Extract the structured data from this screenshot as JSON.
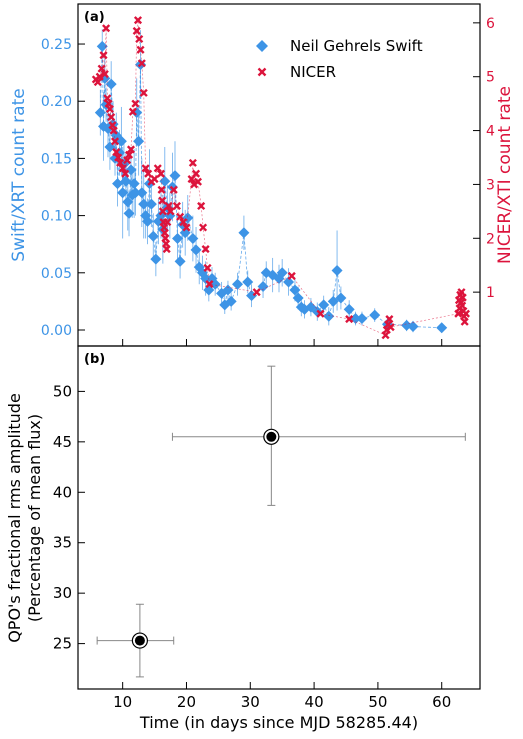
{
  "colors": {
    "swift": "#3d94e6",
    "nicer": "#dc143c",
    "qpo": "#000000",
    "err": "#888888"
  },
  "chart_data": [
    {
      "panel_label": "(a)",
      "type": "scatter",
      "xlim": [
        3,
        66
      ],
      "y_left": {
        "label": "Swift/XRT count rate",
        "lim": [
          -0.014,
          0.285
        ],
        "ticks": [
          0.0,
          0.05,
          0.1,
          0.15,
          0.2,
          0.25
        ],
        "tick_labels": [
          "0.00",
          "0.05",
          "0.10",
          "0.15",
          "0.20",
          "0.25"
        ]
      },
      "y_right": {
        "label": "NICER/XTI count rate",
        "lim": [
          0,
          6.35
        ],
        "ticks": [
          1,
          2,
          3,
          4,
          5,
          6
        ],
        "tick_labels": [
          "1",
          "2",
          "3",
          "4",
          "5",
          "6"
        ]
      },
      "legend": {
        "position": "top-right",
        "entries": [
          "Neil Gehrels Swift",
          "NICER"
        ]
      },
      "series": [
        {
          "name": "Neil Gehrels Swift",
          "marker": "diamond",
          "axis": "left",
          "points": [
            [
              6.5,
              0.19,
              0.02
            ],
            [
              6.8,
              0.248,
              0.015
            ],
            [
              7.0,
              0.178,
              0.03
            ],
            [
              7.2,
              0.22,
              0.02
            ],
            [
              7.4,
              0.197,
              0.015
            ],
            [
              7.7,
              0.176,
              0.025
            ],
            [
              8.0,
              0.16,
              0.02
            ],
            [
              8.2,
              0.215,
              0.02
            ],
            [
              8.5,
              0.18,
              0.02
            ],
            [
              8.8,
              0.15,
              0.015
            ],
            [
              9.0,
              0.17,
              0.02
            ],
            [
              9.2,
              0.128,
              0.02
            ],
            [
              9.5,
              0.155,
              0.02
            ],
            [
              9.8,
              0.165,
              0.03
            ],
            [
              10.0,
              0.12,
              0.04
            ],
            [
              10.2,
              0.145,
              0.02
            ],
            [
              10.5,
              0.13,
              0.025
            ],
            [
              10.8,
              0.112,
              0.025
            ],
            [
              11.0,
              0.102,
              0.02
            ],
            [
              11.3,
              0.14,
              0.02
            ],
            [
              11.5,
              0.118,
              0.02
            ],
            [
              11.8,
              0.128,
              0.03
            ],
            [
              12.0,
              0.12,
              0.02
            ],
            [
              12.2,
              0.19,
              0.03
            ],
            [
              12.5,
              0.165,
              0.03
            ],
            [
              12.8,
              0.232,
              0.03
            ],
            [
              13.0,
              0.12,
              0.03
            ],
            [
              13.3,
              0.11,
              0.03
            ],
            [
              13.6,
              0.1,
              0.02
            ],
            [
              13.9,
              0.095,
              0.02
            ],
            [
              14.2,
              0.128,
              0.03
            ],
            [
              14.5,
              0.11,
              0.02
            ],
            [
              14.8,
              0.082,
              0.02
            ],
            [
              15.2,
              0.062,
              0.015
            ],
            [
              15.6,
              0.095,
              0.02
            ],
            [
              16.0,
              0.1,
              0.02
            ],
            [
              16.3,
              0.088,
              0.03
            ],
            [
              16.6,
              0.13,
              0.03
            ],
            [
              17.0,
              0.107,
              0.02
            ],
            [
              17.4,
              0.1,
              0.02
            ],
            [
              17.8,
              0.125,
              0.03
            ],
            [
              18.2,
              0.135,
              0.03
            ],
            [
              18.6,
              0.08,
              0.02
            ],
            [
              19.0,
              0.06,
              0.015
            ],
            [
              19.4,
              0.092,
              0.02
            ],
            [
              19.8,
              0.085,
              0.02
            ],
            [
              20.2,
              0.098,
              0.02
            ],
            [
              21.0,
              0.08,
              0.02
            ],
            [
              21.5,
              0.07,
              0.02
            ],
            [
              22.0,
              0.055,
              0.015
            ],
            [
              22.5,
              0.05,
              0.015
            ],
            [
              23.0,
              0.045,
              0.015
            ],
            [
              23.5,
              0.035,
              0.01
            ],
            [
              24.0,
              0.045,
              0.01
            ],
            [
              24.5,
              0.04,
              0.01
            ],
            [
              25.5,
              0.032,
              0.01
            ],
            [
              26.0,
              0.022,
              0.008
            ],
            [
              26.5,
              0.035,
              0.008
            ],
            [
              27.0,
              0.025,
              0.008
            ],
            [
              28.0,
              0.04,
              0.01
            ],
            [
              29.0,
              0.085,
              0.015
            ],
            [
              29.6,
              0.042,
              0.01
            ],
            [
              30.2,
              0.03,
              0.01
            ],
            [
              32.0,
              0.038,
              0.01
            ],
            [
              32.5,
              0.05,
              0.01
            ],
            [
              33.5,
              0.048,
              0.015
            ],
            [
              34.5,
              0.045,
              0.012
            ],
            [
              35.0,
              0.05,
              0.012
            ],
            [
              36.0,
              0.042,
              0.012
            ],
            [
              37.0,
              0.035,
              0.01
            ],
            [
              37.5,
              0.028,
              0.01
            ],
            [
              38.0,
              0.02,
              0.008
            ],
            [
              38.5,
              0.018,
              0.008
            ],
            [
              39.5,
              0.02,
              0.008
            ],
            [
              40.5,
              0.016,
              0.008
            ],
            [
              41.5,
              0.022,
              0.008
            ],
            [
              42.3,
              0.012,
              0.008
            ],
            [
              43.0,
              0.025,
              0.01
            ],
            [
              43.6,
              0.052,
              0.035
            ],
            [
              44.2,
              0.028,
              0.01
            ],
            [
              45.5,
              0.018,
              0.008
            ],
            [
              46.5,
              0.01,
              0.006
            ],
            [
              47.5,
              0.01,
              0.006
            ],
            [
              49.5,
              0.013,
              0.006
            ],
            [
              51.5,
              0.005,
              0.005
            ],
            [
              54.5,
              0.004,
              0.005
            ],
            [
              55.5,
              0.003,
              0.005
            ],
            [
              60.0,
              0.002,
              0.004
            ]
          ]
        },
        {
          "name": "NICER",
          "marker": "x",
          "axis": "right",
          "points": [
            [
              5.8,
              4.95
            ],
            [
              6.1,
              4.9
            ],
            [
              6.4,
              5.0
            ],
            [
              6.7,
              5.15
            ],
            [
              7.0,
              5.4
            ],
            [
              7.2,
              5.05
            ],
            [
              7.4,
              5.9
            ],
            [
              7.6,
              4.6
            ],
            [
              7.8,
              4.5
            ],
            [
              8.0,
              4.4
            ],
            [
              8.2,
              4.25
            ],
            [
              8.4,
              4.1
            ],
            [
              8.6,
              4.0
            ],
            [
              8.8,
              3.8
            ],
            [
              9.0,
              3.6
            ],
            [
              9.3,
              3.5
            ],
            [
              9.6,
              3.4
            ],
            [
              10.0,
              3.3
            ],
            [
              10.4,
              3.2
            ],
            [
              10.7,
              3.45
            ],
            [
              11.0,
              3.55
            ],
            [
              11.3,
              3.65
            ],
            [
              11.6,
              4.35
            ],
            [
              12.0,
              4.5
            ],
            [
              12.2,
              5.85
            ],
            [
              12.4,
              6.05
            ],
            [
              12.6,
              5.7
            ],
            [
              12.8,
              5.5
            ],
            [
              13.0,
              5.25
            ],
            [
              13.3,
              4.7
            ],
            [
              13.6,
              3.3
            ],
            [
              14.0,
              3.2
            ],
            [
              14.5,
              3.05
            ],
            [
              15.0,
              3.1
            ],
            [
              15.5,
              3.3
            ],
            [
              16.0,
              3.2
            ],
            [
              16.1,
              2.9
            ],
            [
              16.2,
              2.7
            ],
            [
              16.3,
              2.5
            ],
            [
              16.4,
              2.3
            ],
            [
              16.5,
              2.2
            ],
            [
              16.6,
              2.1
            ],
            [
              16.7,
              2.0
            ],
            [
              16.8,
              1.9
            ],
            [
              16.9,
              1.8
            ],
            [
              17.0,
              2.3
            ],
            [
              17.2,
              2.6
            ],
            [
              17.5,
              2.5
            ],
            [
              18.0,
              2.9
            ],
            [
              18.5,
              2.6
            ],
            [
              19.0,
              2.4
            ],
            [
              19.5,
              2.3
            ],
            [
              20.0,
              2.2
            ],
            [
              20.8,
              3.1
            ],
            [
              21.0,
              3.4
            ],
            [
              21.2,
              3.0
            ],
            [
              21.5,
              3.2
            ],
            [
              21.8,
              3.05
            ],
            [
              22.3,
              2.6
            ],
            [
              22.6,
              2.2
            ],
            [
              23.0,
              1.8
            ],
            [
              23.3,
              1.45
            ],
            [
              23.6,
              1.15
            ],
            [
              31.0,
              1.0
            ],
            [
              36.5,
              1.3
            ],
            [
              41.0,
              0.6
            ],
            [
              45.5,
              0.5
            ],
            [
              51.2,
              0.2
            ],
            [
              51.4,
              0.3
            ],
            [
              51.6,
              0.4
            ],
            [
              51.8,
              0.5
            ],
            [
              52.0,
              0.35
            ],
            [
              62.6,
              0.6
            ],
            [
              62.7,
              0.85
            ],
            [
              62.8,
              0.7
            ],
            [
              62.9,
              0.95
            ],
            [
              63.0,
              0.8
            ],
            [
              63.1,
              1.0
            ],
            [
              63.2,
              0.75
            ],
            [
              63.3,
              0.9
            ],
            [
              63.4,
              0.65
            ],
            [
              63.5,
              0.55
            ],
            [
              63.6,
              0.45
            ],
            [
              63.8,
              0.6
            ]
          ]
        }
      ]
    },
    {
      "panel_label": "(b)",
      "type": "scatter",
      "xlabel": "Time (in days since MJD 58285.44)",
      "ylabel_lines": [
        "QPO's fractional rms amplitude",
        "(Percentage of mean flux)"
      ],
      "xlim": [
        3,
        66
      ],
      "ylim": [
        20.5,
        54.5
      ],
      "xticks": [
        10,
        20,
        30,
        40,
        50,
        60
      ],
      "yticks": [
        25,
        30,
        35,
        40,
        45,
        50
      ],
      "series": [
        {
          "marker": "circle",
          "points": [
            {
              "x": 12.7,
              "x_lo": 6.0,
              "x_hi": 18.0,
              "y": 25.3,
              "y_lo": 21.7,
              "y_hi": 28.9
            },
            {
              "x": 33.3,
              "x_lo": 17.8,
              "x_hi": 63.7,
              "y": 45.5,
              "y_lo": 38.7,
              "y_hi": 52.5
            }
          ]
        }
      ]
    }
  ]
}
